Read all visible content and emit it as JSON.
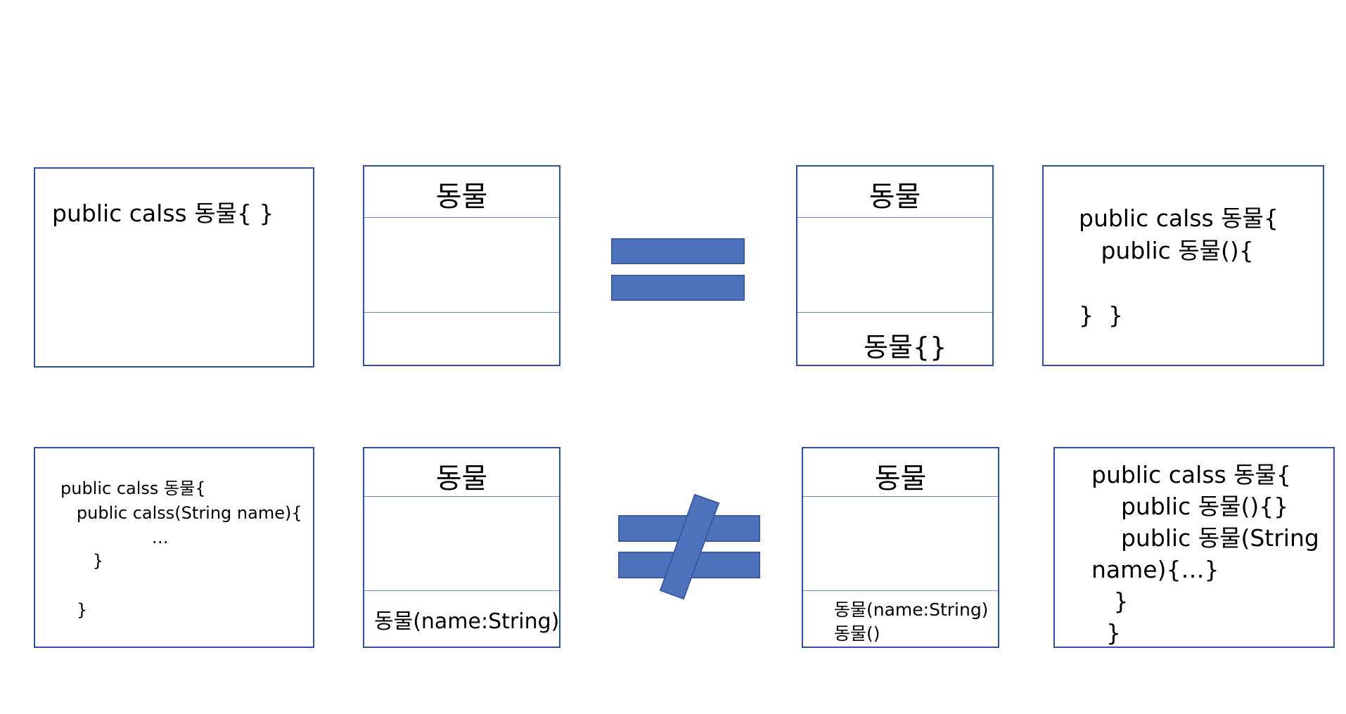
{
  "colors": {
    "border": "#2f4f9a",
    "divider": "#6f8bc7",
    "symbol_fill": "#4f72bd",
    "symbol_stroke": "#3a5ba3"
  },
  "row1": {
    "code_left": [
      "public calss 동물{ }"
    ],
    "uml_left": {
      "title": "동물",
      "operations": []
    },
    "symbol": "equals",
    "uml_right": {
      "title": "동물",
      "operations": [
        "동물{}"
      ]
    },
    "code_right": [
      "public calss 동물{",
      "   public 동물(){",
      "",
      "}  }"
    ]
  },
  "row2": {
    "code_left": [
      "public calss 동물{",
      "   public calss(String name){",
      "                 …",
      "      }",
      "",
      "   }"
    ],
    "uml_left": {
      "title": "동물",
      "operations": [
        "동물(name:String)"
      ]
    },
    "symbol": "not-equals",
    "uml_right": {
      "title": "동물",
      "operations": [
        "동물(name:String)",
        "동물()"
      ]
    },
    "code_right": [
      "public calss 동물{",
      "    public 동물(){}",
      "    public 동물(String",
      "name){…}",
      "   }",
      "  }"
    ]
  }
}
